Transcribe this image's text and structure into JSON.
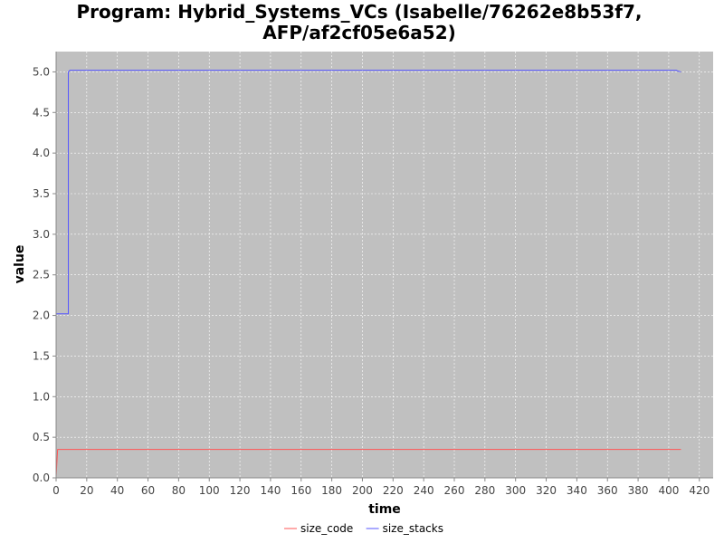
{
  "chart_data": {
    "type": "line",
    "title_lines": [
      "Program: Hybrid_Systems_VCs (Isabelle/76262e8b53f7,",
      "AFP/af2cf05e6a52)"
    ],
    "xlabel": "time",
    "ylabel": "value",
    "xlim": [
      0,
      429
    ],
    "ylim": [
      0,
      5.25
    ],
    "xticks": [
      0,
      20,
      40,
      60,
      80,
      100,
      120,
      140,
      160,
      180,
      200,
      220,
      240,
      260,
      280,
      300,
      320,
      340,
      360,
      380,
      400,
      420
    ],
    "yticks": [
      0.0,
      0.5,
      1.0,
      1.5,
      2.0,
      2.5,
      3.0,
      3.5,
      4.0,
      4.5,
      5.0
    ],
    "ytick_labels": [
      "0.0",
      "0.5",
      "1.0",
      "1.5",
      "2.0",
      "2.5",
      "3.0",
      "3.5",
      "4.0",
      "4.5",
      "5.0"
    ],
    "grid": true,
    "legend_position": "bottom",
    "plot_background": "#c0c0c0",
    "grid_color": "#ffffff",
    "series": [
      {
        "name": "size_code",
        "color": "#ff5555",
        "points": [
          [
            0,
            0.02
          ],
          [
            1,
            0.35
          ],
          [
            408,
            0.35
          ]
        ]
      },
      {
        "name": "size_stacks",
        "color": "#5555ff",
        "points": [
          [
            0,
            2.02
          ],
          [
            8,
            2.02
          ],
          [
            8,
            5.0
          ],
          [
            9,
            5.02
          ],
          [
            405,
            5.02
          ],
          [
            406,
            5.01
          ],
          [
            408,
            5.0
          ]
        ]
      }
    ]
  }
}
